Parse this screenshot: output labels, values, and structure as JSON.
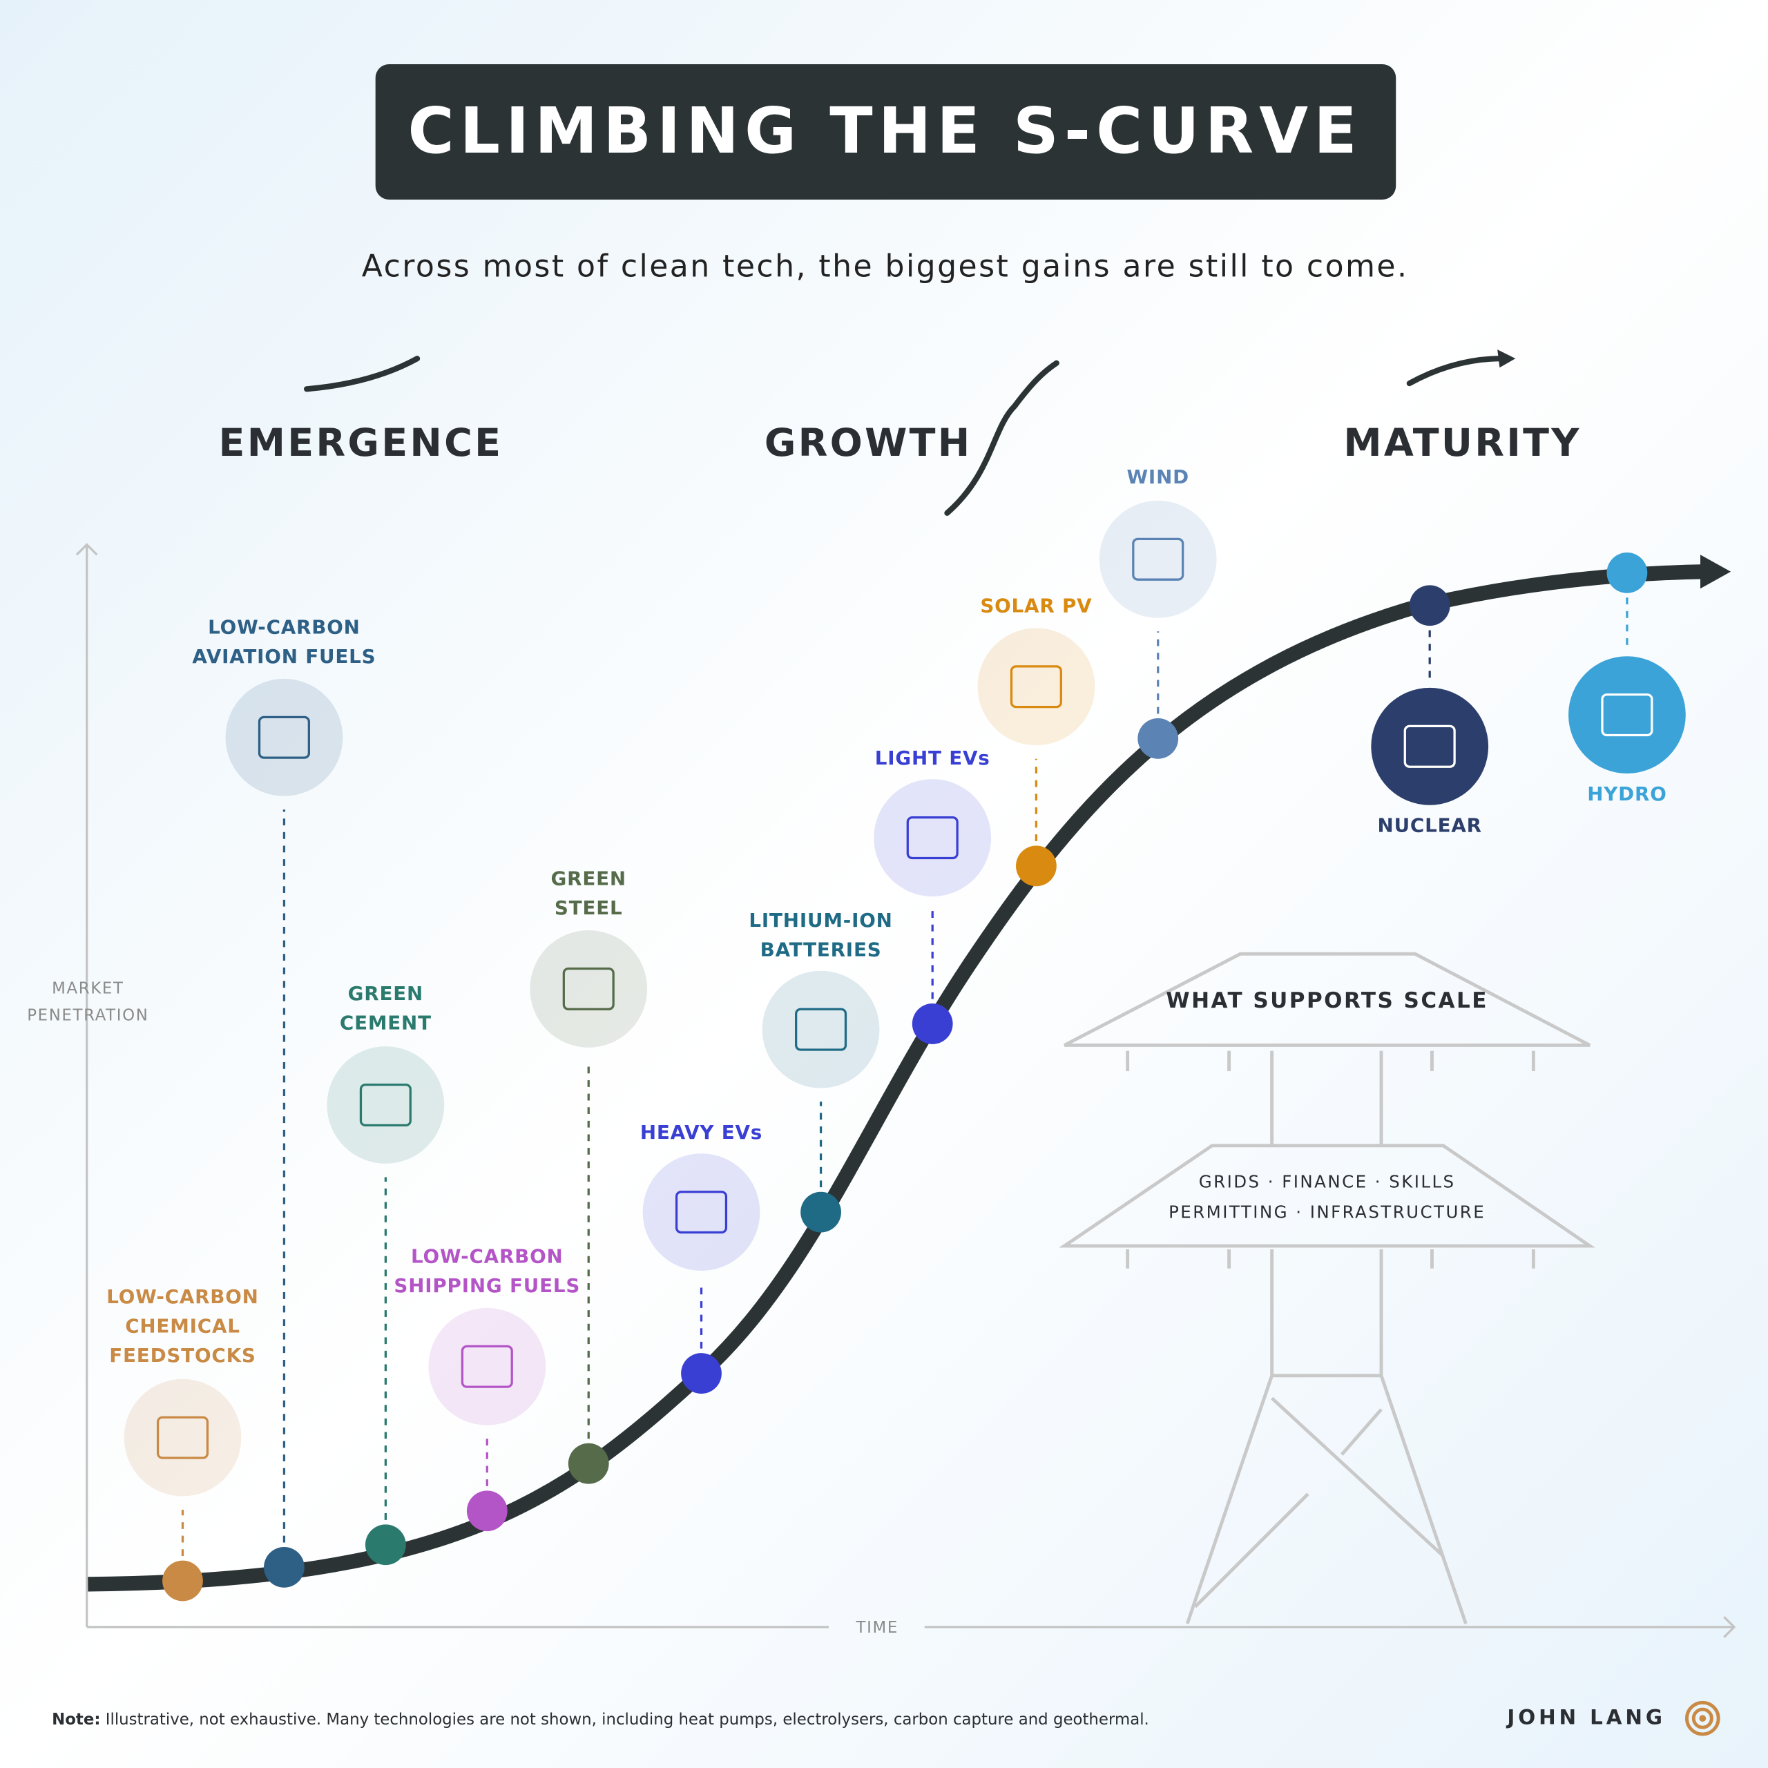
{
  "header": {
    "title": "CLIMBING THE S-CURVE",
    "subtitle": "Across most of clean tech, the biggest gains are still to come."
  },
  "phases": [
    "EMERGENCE",
    "GROWTH",
    "MATURITY"
  ],
  "axes": {
    "y_label": [
      "MARKET",
      "PENETRATION"
    ],
    "x_label": "TIME"
  },
  "technologies": [
    {
      "label": [
        "LOW-CARBON",
        "CHEMICAL",
        "FEEDSTOCKS"
      ],
      "color": "#c98a45"
    },
    {
      "label": [
        "LOW-CARBON",
        "AVIATION FUELS"
      ],
      "color": "#2e5f85"
    },
    {
      "label": [
        "GREEN",
        "CEMENT"
      ],
      "color": "#2a7a6e"
    },
    {
      "label": [
        "LOW-CARBON",
        "SHIPPING FUELS"
      ],
      "color": "#b455c7"
    },
    {
      "label": [
        "GREEN",
        "STEEL"
      ],
      "color": "#566b4a"
    },
    {
      "label": [
        "HEAVY EVs"
      ],
      "color": "#3a3fd4"
    },
    {
      "label": [
        "LITHIUM-ION",
        "BATTERIES"
      ],
      "color": "#1f6b85"
    },
    {
      "label": [
        "LIGHT EVs"
      ],
      "color": "#3a3fd4"
    },
    {
      "label": [
        "SOLAR PV"
      ],
      "color": "#d98a10"
    },
    {
      "label": [
        "WIND"
      ],
      "color": "#5b84b5"
    },
    {
      "label": [
        "NUCLEAR"
      ],
      "color": "#2c3e6b"
    },
    {
      "label": [
        "HYDRO"
      ],
      "color": "#3ba3d8"
    }
  ],
  "support": {
    "title": "WHAT SUPPORTS SCALE",
    "lines": [
      "GRIDS · FINANCE · SKILLS",
      "PERMITTING · INFRASTRUCTURE"
    ]
  },
  "footer": {
    "note_label": "Note:",
    "note_text": " Illustrative, not exhaustive. Many technologies are not shown, including heat pumps, electrolysers, carbon capture and geothermal.",
    "author": "JOHN LANG"
  }
}
